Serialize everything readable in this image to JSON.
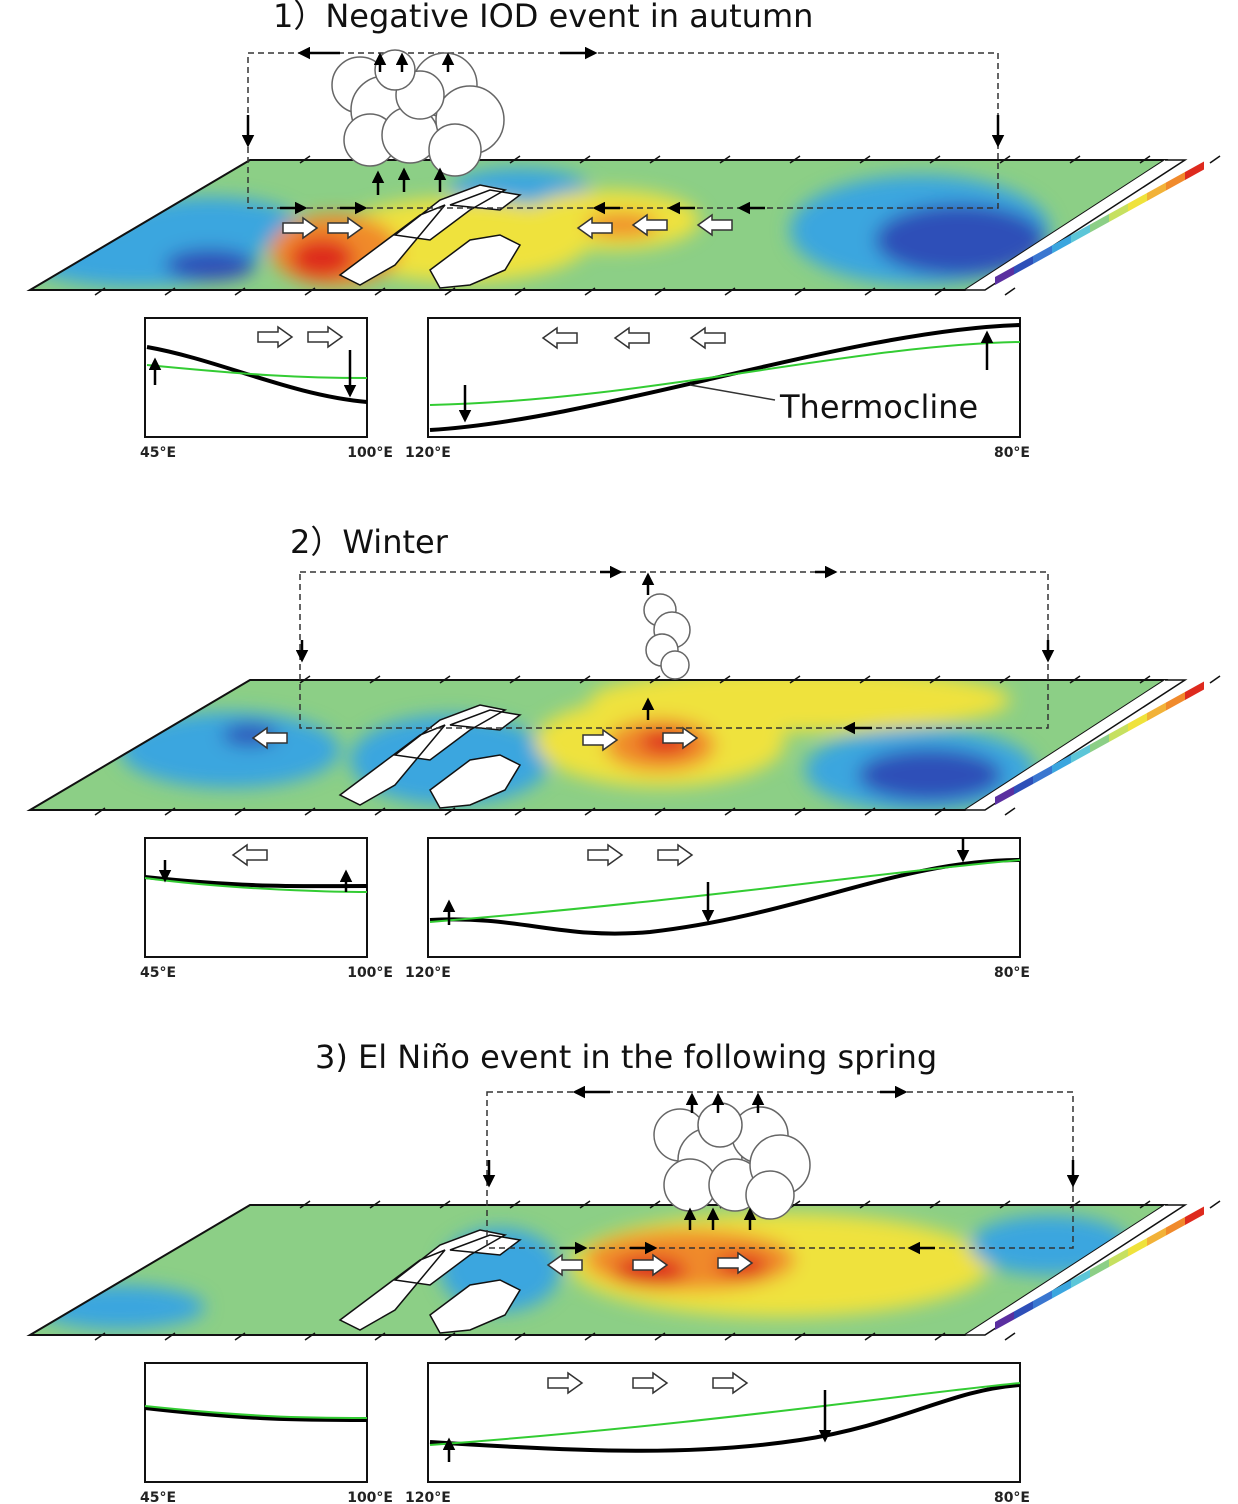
{
  "panels": [
    {
      "title": "1）Negative IOD event in autumn",
      "thermocline_label": "Thermocline",
      "axis_labels": [
        "45°E",
        "100°E",
        "120°E",
        "80°E"
      ]
    },
    {
      "title": "2）Winter",
      "axis_labels": [
        "45°E",
        "100°E",
        "120°E",
        "80°E"
      ]
    },
    {
      "title": "3) El Niño event in the following spring",
      "axis_labels": [
        "45°E",
        "100°E",
        "120°E",
        "80°E"
      ]
    }
  ]
}
